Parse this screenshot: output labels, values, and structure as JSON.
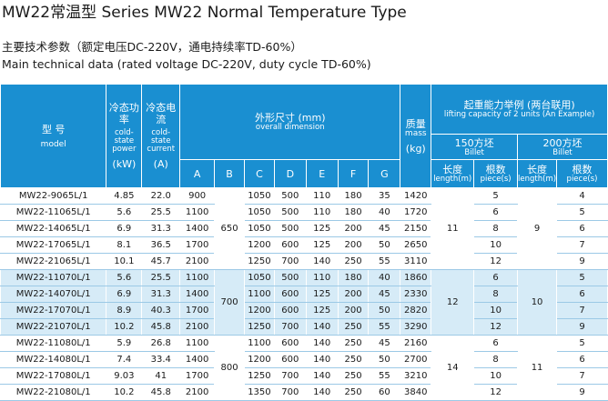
{
  "title": "MW22常温型  Series MW22 Normal Temperature Type",
  "subtitle_cn": "主要技术参数（额定电压DC-220V，通电持续率TD-60%）",
  "subtitle_en": "Main technical data (rated voltage DC-220V, duty cycle TD-60%)",
  "headers": {
    "model_cn": "型 号",
    "model_en": "model",
    "power_cn": "冷态功率",
    "power_en": "cold-state power",
    "power_unit": "(kW)",
    "current_cn": "冷态电流",
    "current_en": "cold-state current",
    "current_unit": "(A)",
    "dim_cn": "外形尺寸 (mm)",
    "dim_en": "overall dimension",
    "dims": [
      "A",
      "B",
      "C",
      "D",
      "E",
      "F",
      "G"
    ],
    "mass_cn": "质量",
    "mass_en": "mass",
    "mass_unit": "(kg)",
    "lift_cn": "起重能力举例 (两台联用)",
    "lift_en": "lifting capacity of 2 units (An Example)",
    "billet150_cn": "150方坯",
    "billet150_en": "Billet",
    "billet200_cn": "200方坯",
    "billet200_en": "Billet",
    "length_cn": "长度",
    "length_en": "length(m)",
    "pieces_cn": "根数",
    "pieces_en": "piece(s)"
  },
  "groups": [
    {
      "B": "650",
      "len150": "11",
      "len200": "9"
    },
    {
      "B": "700",
      "len150": "12",
      "len200": "10"
    },
    {
      "B": "800",
      "len150": "14",
      "len200": "11"
    }
  ],
  "rows": [
    {
      "model": "MW22-9065L/1",
      "power": "4.85",
      "current": "22.0",
      "A": "900",
      "C": "1050",
      "D": "500",
      "E": "110",
      "F": "180",
      "G": "35",
      "mass": "1420",
      "p150": "5",
      "p200": "4"
    },
    {
      "model": "MW22-11065L/1",
      "power": "5.6",
      "current": "25.5",
      "A": "1100",
      "C": "1050",
      "D": "500",
      "E": "110",
      "F": "180",
      "G": "40",
      "mass": "1720",
      "p150": "6",
      "p200": "5"
    },
    {
      "model": "MW22-14065L/1",
      "power": "6.9",
      "current": "31.3",
      "A": "1400",
      "C": "1050",
      "D": "500",
      "E": "125",
      "F": "200",
      "G": "45",
      "mass": "2150",
      "p150": "8",
      "p200": "6"
    },
    {
      "model": "MW22-17065L/1",
      "power": "8.1",
      "current": "36.5",
      "A": "1700",
      "C": "1200",
      "D": "600",
      "E": "125",
      "F": "200",
      "G": "50",
      "mass": "2650",
      "p150": "10",
      "p200": "7"
    },
    {
      "model": "MW22-21065L/1",
      "power": "10.1",
      "current": "45.7",
      "A": "2100",
      "C": "1250",
      "D": "700",
      "E": "140",
      "F": "250",
      "G": "55",
      "mass": "3110",
      "p150": "12",
      "p200": "9"
    },
    {
      "model": "MW22-11070L/1",
      "power": "5.6",
      "current": "25.5",
      "A": "1100",
      "C": "1050",
      "D": "500",
      "E": "110",
      "F": "180",
      "G": "40",
      "mass": "1860",
      "p150": "6",
      "p200": "5"
    },
    {
      "model": "MW22-14070L/1",
      "power": "6.9",
      "current": "31.3",
      "A": "1400",
      "C": "1100",
      "D": "600",
      "E": "125",
      "F": "200",
      "G": "45",
      "mass": "2330",
      "p150": "8",
      "p200": "6"
    },
    {
      "model": "MW22-17070L/1",
      "power": "8.9",
      "current": "40.3",
      "A": "1700",
      "C": "1200",
      "D": "600",
      "E": "125",
      "F": "200",
      "G": "50",
      "mass": "2820",
      "p150": "10",
      "p200": "7"
    },
    {
      "model": "MW22-21070L/1",
      "power": "10.2",
      "current": "45.8",
      "A": "2100",
      "C": "1250",
      "D": "700",
      "E": "140",
      "F": "250",
      "G": "55",
      "mass": "3290",
      "p150": "12",
      "p200": "9"
    },
    {
      "model": "MW22-11080L/1",
      "power": "5.9",
      "current": "26.8",
      "A": "1100",
      "C": "1100",
      "D": "600",
      "E": "140",
      "F": "250",
      "G": "45",
      "mass": "2160",
      "p150": "6",
      "p200": "5"
    },
    {
      "model": "MW22-14080L/1",
      "power": "7.4",
      "current": "33.4",
      "A": "1400",
      "C": "1200",
      "D": "600",
      "E": "140",
      "F": "250",
      "G": "50",
      "mass": "2700",
      "p150": "8",
      "p200": "6"
    },
    {
      "model": "MW22-17080L/1",
      "power": "9.03",
      "current": "41",
      "A": "1700",
      "C": "1250",
      "D": "700",
      "E": "140",
      "F": "250",
      "G": "55",
      "mass": "3210",
      "p150": "10",
      "p200": "7"
    },
    {
      "model": "MW22-21080L/1",
      "power": "10.2",
      "current": "45.8",
      "A": "2100",
      "C": "1350",
      "D": "700",
      "E": "140",
      "F": "250",
      "G": "60",
      "mass": "3840",
      "p150": "12",
      "p200": "9"
    }
  ],
  "colors": {
    "header": "#1a8fd1",
    "band": "#d6ebf7",
    "header_text": "#ffffff"
  }
}
